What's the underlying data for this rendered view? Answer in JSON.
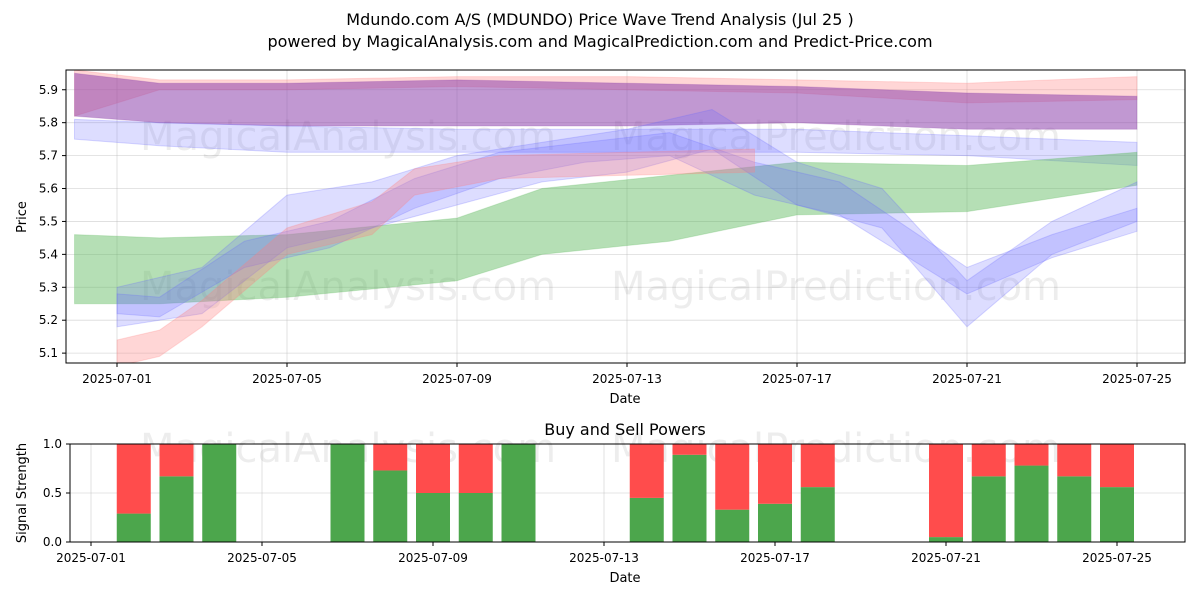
{
  "title_line1": "Mdundo.com A/S (MDUNDO) Price Wave Trend Analysis (Jul 25 )",
  "title_line2": "powered by MagicalAnalysis.com and MagicalPrediction.com and Predict-Price.com",
  "watermarks": [
    "MagicalAnalysis.com",
    "MagicalPrediction.com"
  ],
  "colors": {
    "red_band": "#ff8080",
    "purple_band": "#8e44ad",
    "blue_band": "#6666ff",
    "green_band": "#5cb85c",
    "buy": "#4ca64c",
    "sell": "#ff4c4c"
  },
  "chart_data": [
    {
      "type": "area",
      "xlabel": "Date",
      "ylabel": "Price",
      "ylim": [
        5.07,
        5.96
      ],
      "yticks": [
        "5.1",
        "5.2",
        "5.3",
        "5.4",
        "5.5",
        "5.6",
        "5.7",
        "5.8",
        "5.9"
      ],
      "xticks": [
        "2025-07-01",
        "2025-07-05",
        "2025-07-09",
        "2025-07-13",
        "2025-07-17",
        "2025-07-21",
        "2025-07-25"
      ],
      "grid": true,
      "bands": [
        {
          "color": "red",
          "x": [
            "2025-06-30",
            "2025-07-02",
            "2025-07-05",
            "2025-07-09",
            "2025-07-13",
            "2025-07-17",
            "2025-07-21",
            "2025-07-25"
          ],
          "low": [
            5.82,
            5.9,
            5.9,
            5.91,
            5.9,
            5.89,
            5.86,
            5.87
          ],
          "high": [
            5.96,
            5.93,
            5.93,
            5.94,
            5.94,
            5.93,
            5.92,
            5.94
          ]
        },
        {
          "color": "purple",
          "x": [
            "2025-06-30",
            "2025-07-02",
            "2025-07-05",
            "2025-07-09",
            "2025-07-13",
            "2025-07-17",
            "2025-07-21",
            "2025-07-25"
          ],
          "low": [
            5.82,
            5.8,
            5.79,
            5.79,
            5.79,
            5.8,
            5.78,
            5.78
          ],
          "high": [
            5.95,
            5.92,
            5.92,
            5.93,
            5.92,
            5.91,
            5.89,
            5.88
          ]
        },
        {
          "color": "blue",
          "x": [
            "2025-06-30",
            "2025-07-02",
            "2025-07-05",
            "2025-07-09",
            "2025-07-13",
            "2025-07-17",
            "2025-07-21",
            "2025-07-25"
          ],
          "low": [
            5.75,
            5.73,
            5.71,
            5.71,
            5.71,
            5.71,
            5.7,
            5.67
          ],
          "high": [
            5.81,
            5.8,
            5.79,
            5.78,
            5.78,
            5.78,
            5.76,
            5.74
          ]
        },
        {
          "color": "green",
          "x": [
            "2025-06-30",
            "2025-07-02",
            "2025-07-05",
            "2025-07-09",
            "2025-07-11",
            "2025-07-14",
            "2025-07-17",
            "2025-07-21",
            "2025-07-25"
          ],
          "low": [
            5.25,
            5.25,
            5.27,
            5.32,
            5.4,
            5.44,
            5.52,
            5.53,
            5.61
          ],
          "high": [
            5.46,
            5.45,
            5.46,
            5.51,
            5.6,
            5.64,
            5.68,
            5.67,
            5.71
          ]
        },
        {
          "color": "blue",
          "x": [
            "2025-07-01",
            "2025-07-02",
            "2025-07-04",
            "2025-07-06",
            "2025-07-08",
            "2025-07-10",
            "2025-07-12",
            "2025-07-14",
            "2025-07-16",
            "2025-07-18",
            "2025-07-21",
            "2025-07-23",
            "2025-07-25"
          ],
          "low": [
            5.22,
            5.21,
            5.36,
            5.42,
            5.54,
            5.63,
            5.68,
            5.7,
            5.58,
            5.52,
            5.28,
            5.39,
            5.47
          ],
          "high": [
            5.28,
            5.27,
            5.44,
            5.5,
            5.63,
            5.71,
            5.74,
            5.77,
            5.68,
            5.62,
            5.36,
            5.46,
            5.54
          ]
        },
        {
          "color": "blue",
          "x": [
            "2025-07-01",
            "2025-07-03",
            "2025-07-05",
            "2025-07-07",
            "2025-07-09",
            "2025-07-11",
            "2025-07-13",
            "2025-07-15",
            "2025-07-17",
            "2025-07-19",
            "2025-07-21",
            "2025-07-23",
            "2025-07-25"
          ],
          "low": [
            5.18,
            5.22,
            5.42,
            5.48,
            5.55,
            5.62,
            5.65,
            5.72,
            5.55,
            5.48,
            5.18,
            5.4,
            5.5
          ],
          "high": [
            5.3,
            5.36,
            5.58,
            5.62,
            5.7,
            5.74,
            5.78,
            5.84,
            5.68,
            5.6,
            5.32,
            5.5,
            5.62
          ]
        },
        {
          "color": "red",
          "x": [
            "2025-07-01",
            "2025-07-02",
            "2025-07-03",
            "2025-07-05",
            "2025-07-07",
            "2025-07-08",
            "2025-07-10",
            "2025-07-13",
            "2025-07-16"
          ],
          "low": [
            5.06,
            5.09,
            5.18,
            5.4,
            5.46,
            5.58,
            5.63,
            5.64,
            5.65
          ],
          "high": [
            5.14,
            5.17,
            5.26,
            5.48,
            5.56,
            5.66,
            5.7,
            5.71,
            5.72
          ]
        }
      ]
    },
    {
      "type": "bar",
      "title": "Buy and Sell Powers",
      "xlabel": "Date",
      "ylabel": "Signal Strength",
      "ylim": [
        0,
        1.0
      ],
      "yticks": [
        "0.0",
        "0.5",
        "1.0"
      ],
      "xticks": [
        "2025-07-01",
        "2025-07-05",
        "2025-07-09",
        "2025-07-13",
        "2025-07-17",
        "2025-07-21",
        "2025-07-25"
      ],
      "categories": [
        "2025-07-02",
        "2025-07-03",
        "2025-07-04",
        "2025-07-07",
        "2025-07-08",
        "2025-07-09",
        "2025-07-10",
        "2025-07-11",
        "2025-07-14",
        "2025-07-15",
        "2025-07-16",
        "2025-07-17",
        "2025-07-18",
        "2025-07-21",
        "2025-07-22",
        "2025-07-23",
        "2025-07-24",
        "2025-07-25"
      ],
      "series": [
        {
          "values": [
            0.29,
            0.67,
            1.0,
            1.0,
            0.73,
            0.5,
            0.5,
            1.0,
            0.45,
            0.89,
            0.33,
            0.39,
            0.56,
            0.05,
            0.67,
            0.78,
            0.67,
            0.56
          ]
        },
        {
          "values": [
            0.71,
            0.33,
            0.0,
            0.0,
            0.27,
            0.5,
            0.5,
            0.0,
            0.55,
            0.11,
            0.67,
            0.61,
            0.44,
            0.95,
            0.33,
            0.22,
            0.33,
            0.44
          ]
        }
      ]
    }
  ]
}
